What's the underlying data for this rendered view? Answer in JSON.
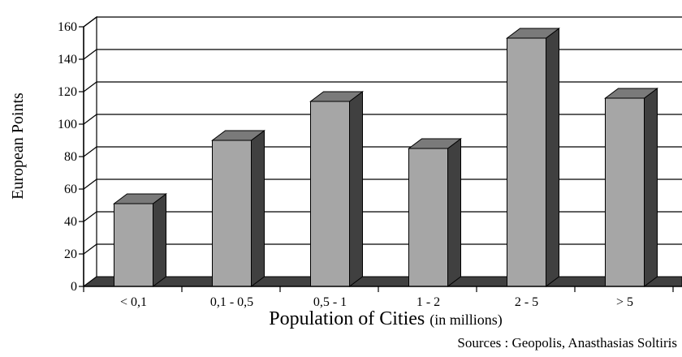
{
  "chart_data": {
    "type": "bar",
    "categories": [
      "< 0,1",
      "0,1 - 0,5",
      "0,5 - 1",
      "1 - 2",
      "2 - 5",
      "> 5"
    ],
    "values": [
      51,
      90,
      114,
      85,
      153,
      116
    ],
    "ylim": [
      0,
      160
    ],
    "yticks": [
      0,
      20,
      40,
      60,
      80,
      100,
      120,
      140,
      160
    ],
    "ylabel": "European Points",
    "xlabel": "Population of Cities",
    "xlabel_unit": "(in millions)",
    "grid": true,
    "style": "3d",
    "colors": {
      "bar_front": "#a6a6a6",
      "bar_top": "#7a7a7a",
      "bar_side": "#404040",
      "floor": "#404040",
      "grid": "#000000"
    }
  },
  "source_note": "Sources : Geopolis, Anasthasias Soltiris"
}
